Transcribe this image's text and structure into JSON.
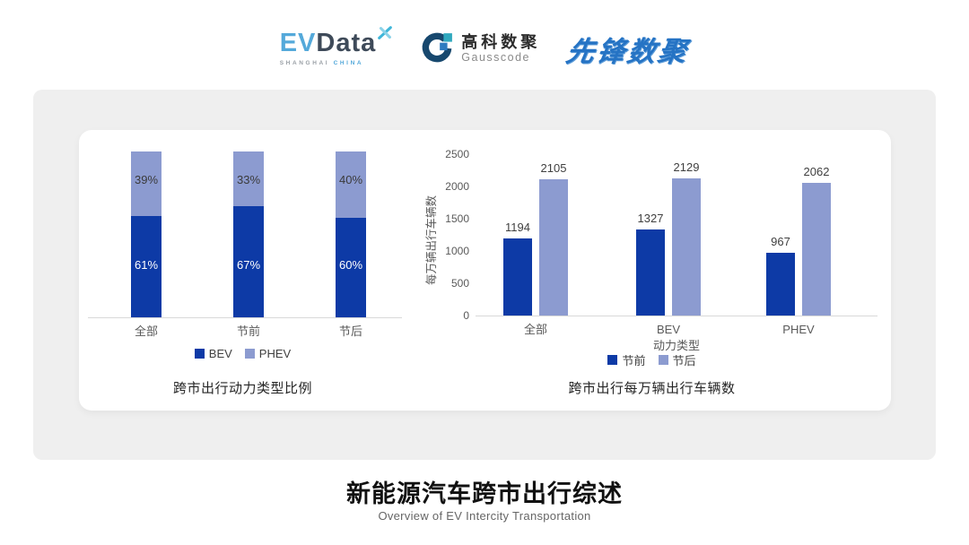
{
  "header": {
    "evdata": {
      "ev": "EV",
      "data": "Data",
      "sub_left": "SHANGHAI",
      "sub_right": "CHINA"
    },
    "gausscode": {
      "cn": "高科数聚",
      "en": "Gausscode"
    },
    "pioneer": "先锋数聚"
  },
  "chart_data": [
    {
      "type": "bar",
      "variant": "stacked",
      "title": "跨市出行动力类型比例",
      "categories": [
        "全部",
        "节前",
        "节后"
      ],
      "series": [
        {
          "name": "BEV",
          "values": [
            61,
            67,
            60
          ],
          "color": "#0D3AA6"
        },
        {
          "name": "PHEV",
          "values": [
            39,
            33,
            40
          ],
          "color": "#8C9BD0"
        }
      ],
      "unit": "%",
      "ylim": [
        0,
        100
      ],
      "grid": false,
      "legend_position": "bottom"
    },
    {
      "type": "bar",
      "variant": "grouped",
      "title": "跨市出行每万辆出行车辆数",
      "categories": [
        "全部",
        "BEV",
        "PHEV"
      ],
      "series": [
        {
          "name": "节前",
          "values": [
            1194,
            1327,
            967
          ],
          "color": "#0D3AA6"
        },
        {
          "name": "节后",
          "values": [
            2105,
            2129,
            2062
          ],
          "color": "#8C9BD0"
        }
      ],
      "xlabel": "动力类型",
      "ylabel": "每万辆出行车辆数",
      "ylim": [
        0,
        2500
      ],
      "yticks": [
        0,
        500,
        1000,
        1500,
        2000,
        2500
      ],
      "grid": false,
      "legend_position": "bottom"
    }
  ],
  "footer": {
    "title": "新能源汽车跨市出行综述",
    "subtitle": "Overview of EV Intercity Transportation"
  },
  "colors": {
    "primary_dark_blue": "#0D3AA6",
    "secondary_light_blue": "#8C9BD0",
    "card_background": "#EFEFEF",
    "axis_line": "#D9D9D9",
    "tick_text": "#595959",
    "evdata_blue": "#54A9DA",
    "evdata_slate": "#3E4A59",
    "evdata_teal": "#3FB6D9",
    "gausscode_navy": "#17486E",
    "gausscode_teal": "#2FA8BE",
    "gausscode_blue": "#2E7BC0",
    "pioneer_blue": "#2573C4"
  }
}
